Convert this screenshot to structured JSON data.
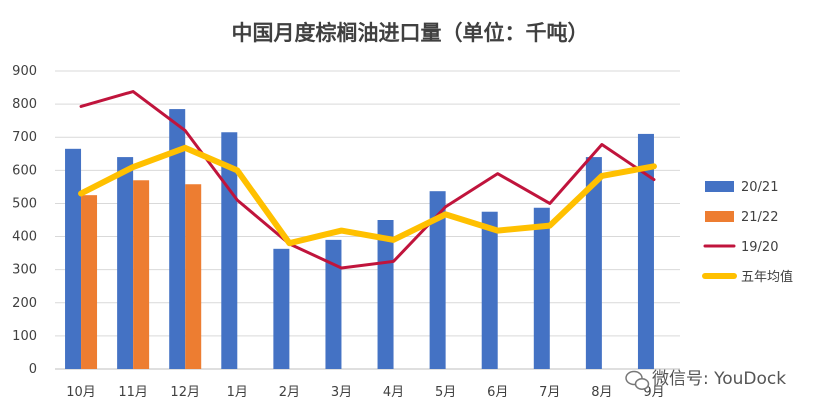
{
  "chart_data": {
    "type": "bar",
    "title": "中国月度棕榈油进口量（单位：千吨）",
    "categories": [
      "10月",
      "11月",
      "12月",
      "1月",
      "2月",
      "3月",
      "4月",
      "5月",
      "6月",
      "7月",
      "8月",
      "9月"
    ],
    "ylim": [
      0,
      900
    ],
    "yticks": [
      0,
      100,
      200,
      300,
      400,
      500,
      600,
      700,
      800,
      900
    ],
    "grid": true,
    "legend_position": "right",
    "series": [
      {
        "name": "20/21",
        "kind": "bar",
        "color": "#4472C4",
        "values": [
          665,
          640,
          785,
          715,
          363,
          390,
          450,
          537,
          475,
          487,
          640,
          710
        ]
      },
      {
        "name": "21/22",
        "kind": "bar",
        "color": "#ED7D31",
        "values": [
          525,
          570,
          558,
          null,
          null,
          null,
          null,
          null,
          null,
          null,
          null,
          null
        ]
      },
      {
        "name": "19/20",
        "kind": "line",
        "color": "#C0143C",
        "values": [
          793,
          838,
          720,
          510,
          378,
          305,
          325,
          490,
          590,
          500,
          678,
          572
        ]
      },
      {
        "name": "五年均值",
        "kind": "line",
        "color": "#FFC000",
        "values": [
          530,
          610,
          668,
          600,
          380,
          418,
          390,
          467,
          418,
          433,
          583,
          612
        ]
      }
    ]
  },
  "watermark": {
    "text": "微信号: YouDock",
    "icon": "wechat-icon"
  }
}
